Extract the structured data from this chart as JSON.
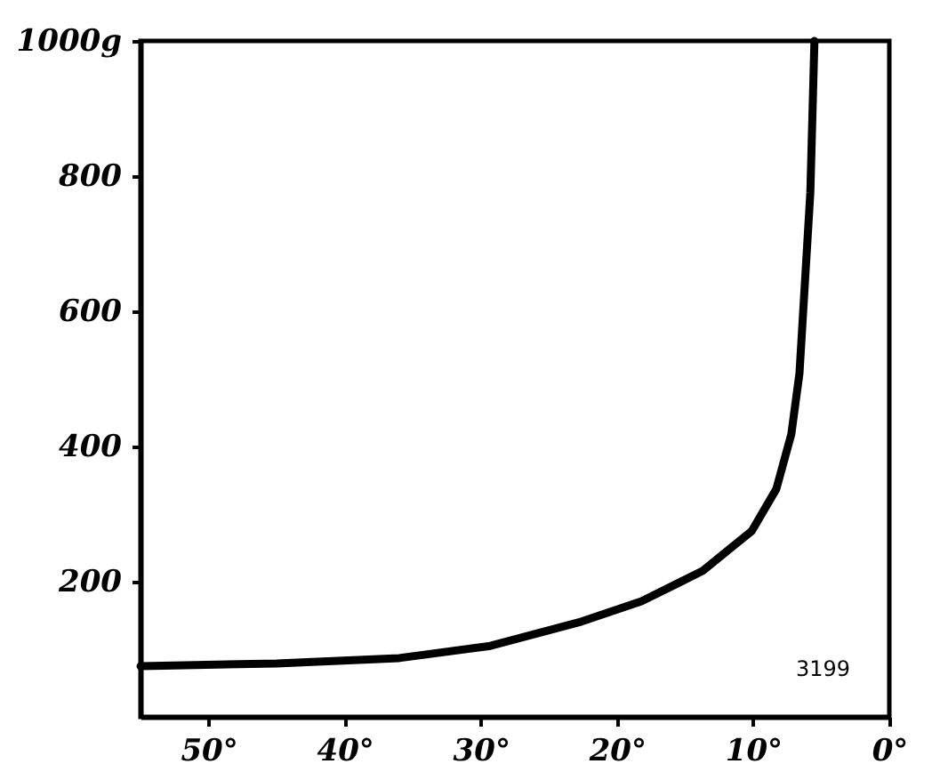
{
  "chart_data": {
    "type": "line",
    "x": [
      55,
      45,
      36,
      29.3,
      22.6,
      18.2,
      13.7,
      10.1,
      8.3,
      7.2,
      6.6,
      6.2,
      5.8,
      5.5
    ],
    "series": [
      {
        "color": "#000000",
        "values": [
          75,
          79,
          87,
          105,
          141,
          171,
          216,
          275,
          337,
          418,
          508,
          642,
          776,
          1000
        ]
      }
    ],
    "xlim": [
      55,
      0
    ],
    "xticks": [
      {
        "value": 50,
        "label": "50°"
      },
      {
        "value": 40,
        "label": "40°"
      },
      {
        "value": 30,
        "label": "30°"
      },
      {
        "value": 20,
        "label": "20°"
      },
      {
        "value": 10,
        "label": "10°"
      },
      {
        "value": 0,
        "label": "0°"
      }
    ],
    "ylim": [
      0,
      1000
    ],
    "yticks": [
      200,
      400,
      600,
      800,
      {
        "value": 1000,
        "label": "1000g"
      }
    ],
    "annotations": [
      "3199"
    ],
    "grid": false
  }
}
